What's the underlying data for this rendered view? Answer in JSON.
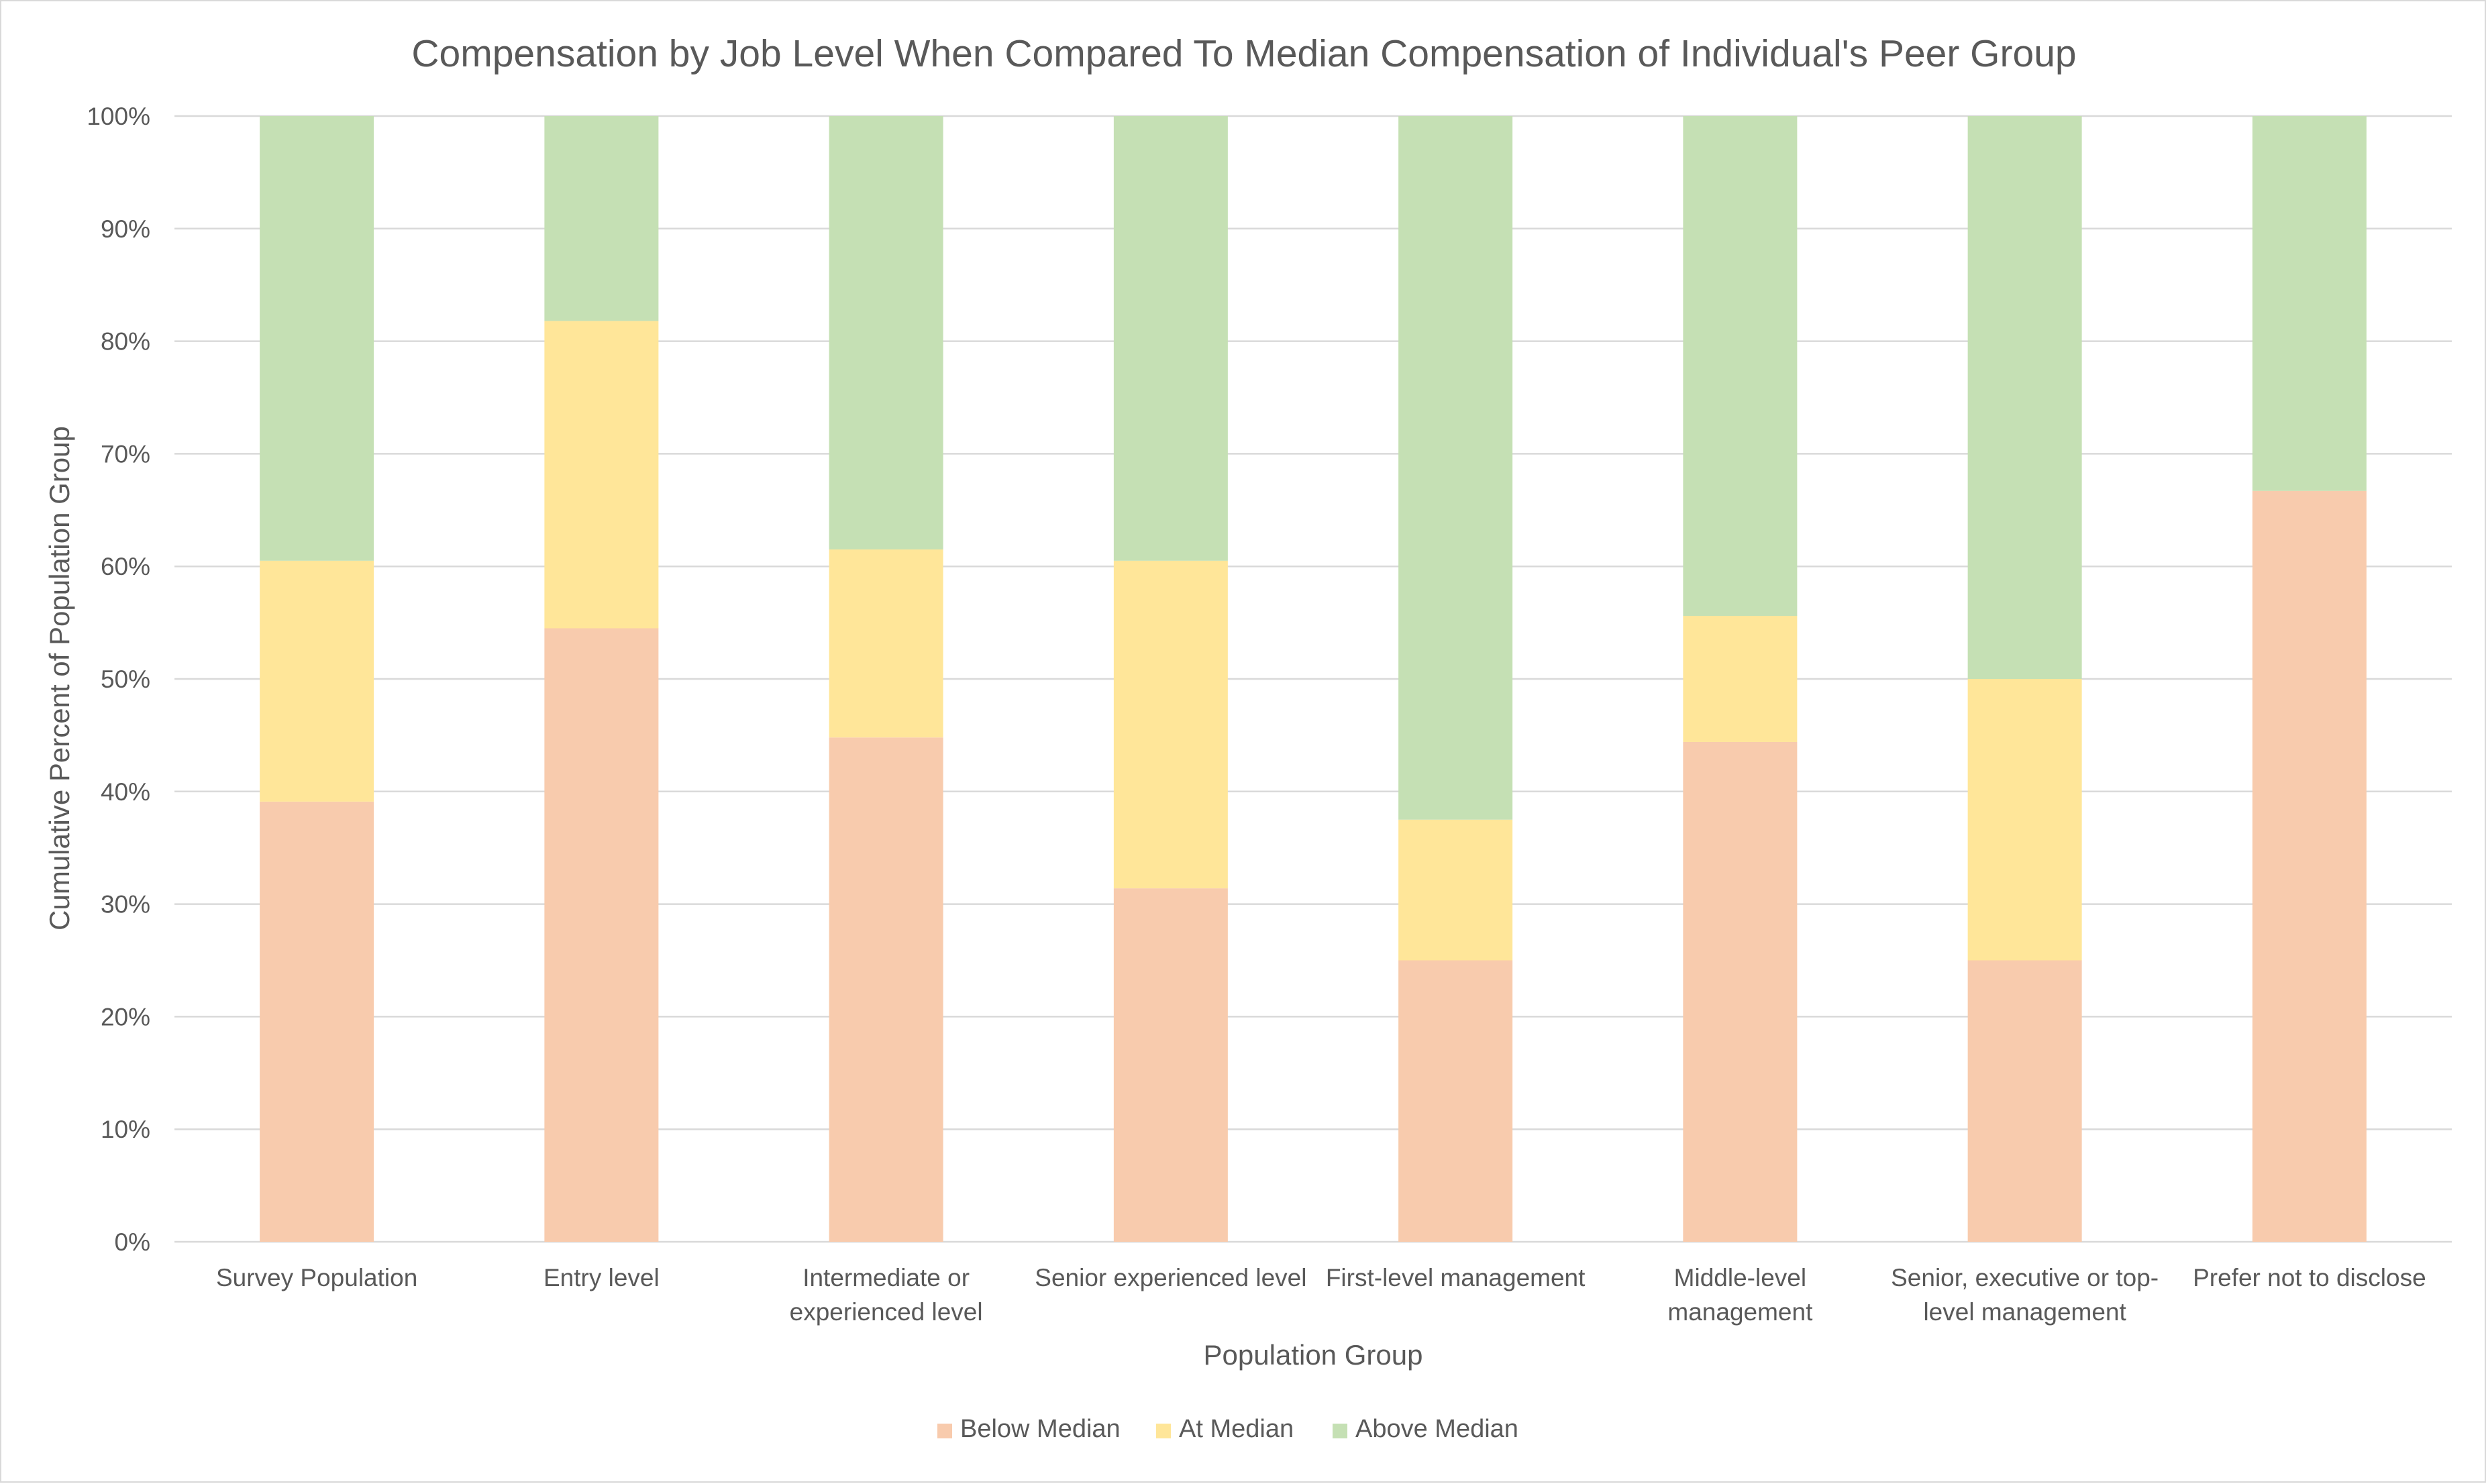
{
  "chart_data": {
    "type": "bar",
    "stacked": true,
    "title": "Compensation by Job Level When Compared To Median Compensation of Individual's Peer Group",
    "xlabel": "Population Group",
    "ylabel": "Cumulative Percent of Population Group",
    "ylim": [
      0,
      100
    ],
    "y_ticks": [
      "0%",
      "10%",
      "20%",
      "30%",
      "40%",
      "50%",
      "60%",
      "70%",
      "80%",
      "90%",
      "100%"
    ],
    "grid": true,
    "legend_position": "bottom",
    "categories": [
      [
        "Survey Population"
      ],
      [
        "Entry level"
      ],
      [
        "Intermediate or",
        "experienced level"
      ],
      [
        "Senior experienced level"
      ],
      [
        "First-level management"
      ],
      [
        "Middle-level",
        "management"
      ],
      [
        "Senior, executive or top-",
        "level management"
      ],
      [
        "Prefer not to disclose"
      ]
    ],
    "series": [
      {
        "name": "Below Median",
        "color": "#f8cbad",
        "values": [
          39.1,
          54.5,
          44.8,
          31.4,
          25.0,
          44.4,
          25.0,
          66.7
        ]
      },
      {
        "name": "At Median",
        "color": "#ffe699",
        "values": [
          21.4,
          27.3,
          16.7,
          29.1,
          12.5,
          11.2,
          25.0,
          0.0
        ]
      },
      {
        "name": "Above Median",
        "color": "#c5e0b4",
        "values": [
          39.5,
          18.2,
          38.5,
          39.5,
          62.5,
          44.4,
          50.0,
          33.3
        ]
      }
    ]
  }
}
